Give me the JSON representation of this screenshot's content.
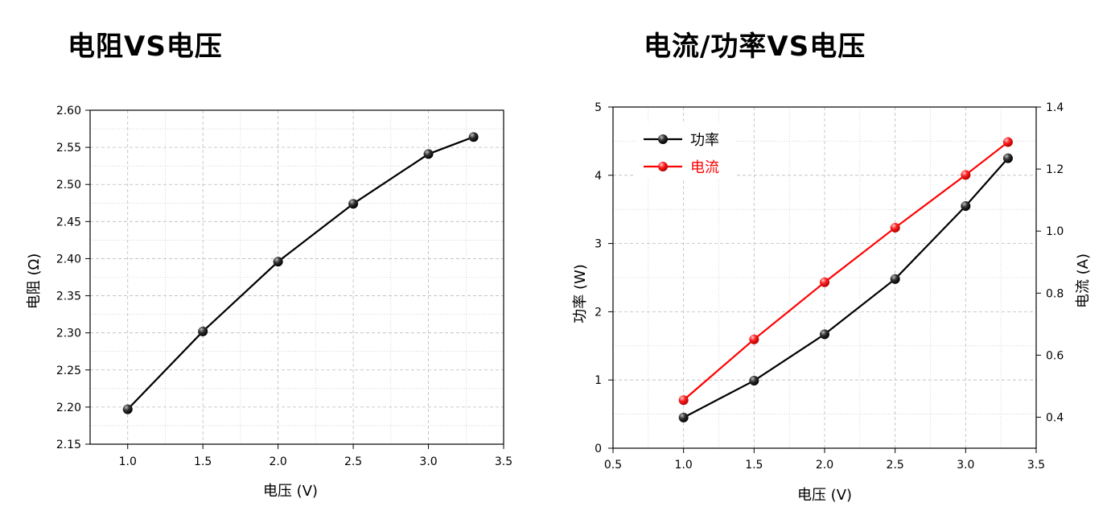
{
  "titles": {
    "left": "电阻VS电压",
    "right": "电流/功率VS电压"
  },
  "colors": {
    "black_series": "#000000",
    "red_series": "#ff0000",
    "grid": "#bbbbbb"
  },
  "chart_data": [
    {
      "type": "line",
      "title": "电阻VS电压",
      "xlabel": "电压 (V)",
      "ylabel": "电阻 (Ω)",
      "xlim": [
        0.75,
        3.5
      ],
      "ylim": [
        2.15,
        2.6
      ],
      "xticks": [
        "1.0",
        "1.5",
        "2.0",
        "2.5",
        "3.0",
        "3.5"
      ],
      "yticks": [
        "2.15",
        "2.20",
        "2.25",
        "2.30",
        "2.35",
        "2.40",
        "2.45",
        "2.50",
        "2.55",
        "2.60"
      ],
      "grid": true,
      "series": [
        {
          "x": [
            1.0,
            1.5,
            2.0,
            2.5,
            3.0,
            3.3
          ],
          "y": [
            2.197,
            2.302,
            2.396,
            2.474,
            2.541,
            2.564
          ],
          "color": "#000000"
        }
      ]
    },
    {
      "type": "line",
      "title": "电流/功率VS电压",
      "xlabel": "电压 (V)",
      "ylabel_left": "功率 (W)",
      "ylabel_right": "电流 (A)",
      "xlim": [
        0.5,
        3.5
      ],
      "ylim_left": [
        0,
        5
      ],
      "ylim_right": [
        0.3,
        1.4
      ],
      "xticks": [
        "0.5",
        "1.0",
        "1.5",
        "2.0",
        "2.5",
        "3.0",
        "3.5"
      ],
      "yticks_left": [
        "0",
        "1",
        "2",
        "3",
        "4",
        "5"
      ],
      "yticks_right": [
        "0.4",
        "0.6",
        "0.8",
        "1.0",
        "1.2",
        "1.4"
      ],
      "grid": true,
      "legend_position": "top-left",
      "series": [
        {
          "name": "功率",
          "axis": "left",
          "x": [
            1.0,
            1.5,
            2.0,
            2.5,
            3.0,
            3.3
          ],
          "y": [
            0.45,
            0.99,
            1.67,
            2.48,
            3.55,
            4.25
          ],
          "color": "#000000"
        },
        {
          "name": "电流",
          "axis": "right",
          "x": [
            1.0,
            1.5,
            2.0,
            2.5,
            3.0,
            3.3
          ],
          "y": [
            0.455,
            0.651,
            0.835,
            1.011,
            1.181,
            1.287
          ],
          "color": "#ff0000"
        }
      ]
    }
  ]
}
